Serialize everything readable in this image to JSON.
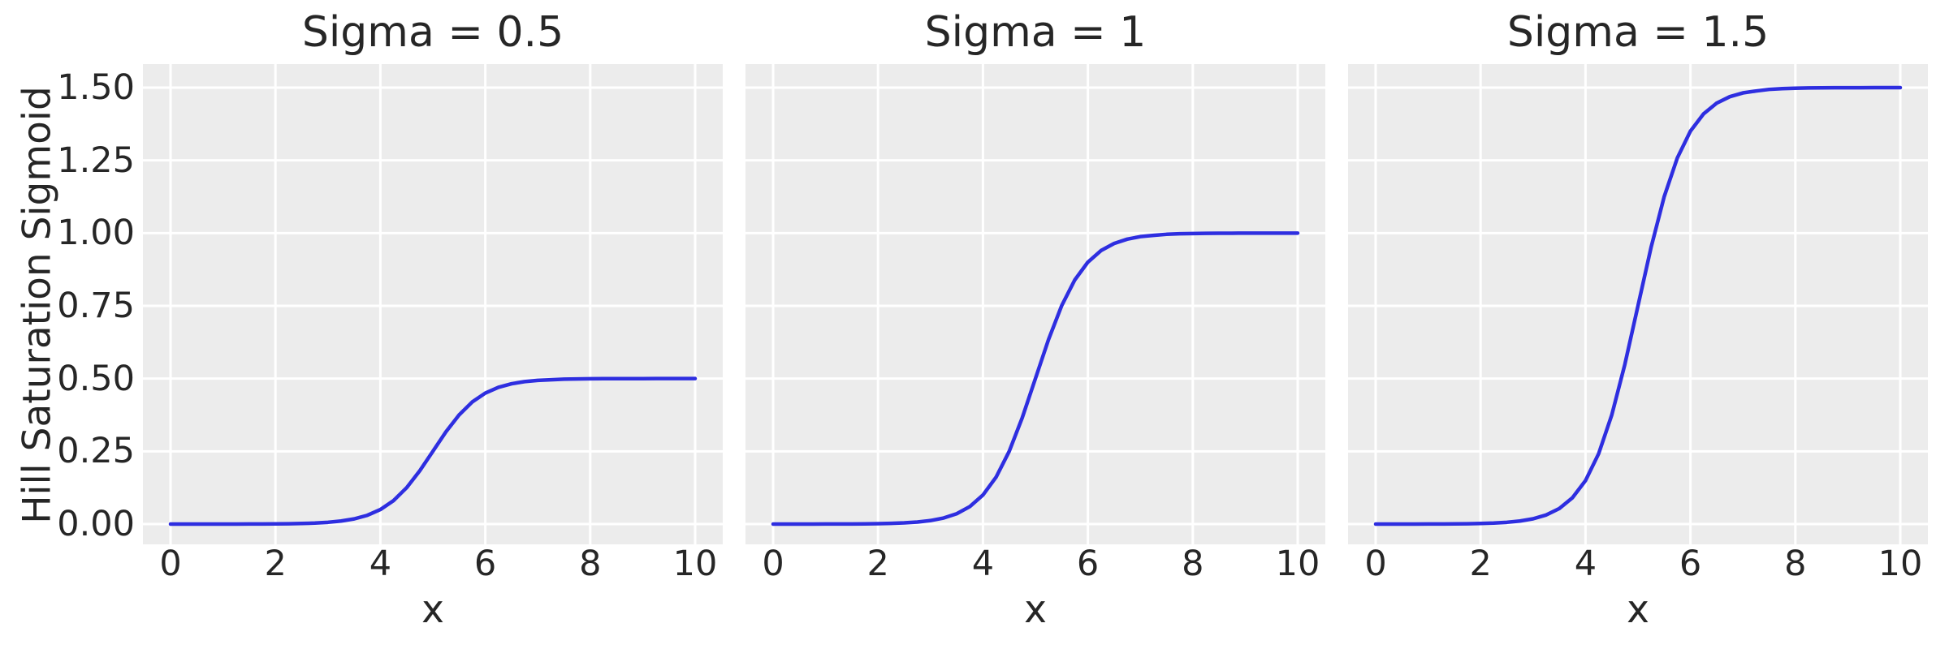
{
  "figure": {
    "background": "#ffffff",
    "panel_background": "#ececec",
    "grid_color": "#ffffff",
    "line_color": "#2e2ee0",
    "text_color": "#262626"
  },
  "chart_data": {
    "type": "line",
    "layout": "1x3 subplots, shared y axis, grid on",
    "xlabel": "x",
    "ylabel": "Hill Saturation Sigmoid",
    "xlim": [
      0,
      10
    ],
    "ylim": [
      0,
      1.5
    ],
    "x_ticks": [
      "0",
      "2",
      "4",
      "6",
      "8",
      "10"
    ],
    "x_tick_values": [
      0,
      2,
      4,
      6,
      8,
      10
    ],
    "y_ticks": [
      "0.00",
      "0.25",
      "0.50",
      "0.75",
      "1.00",
      "1.25",
      "1.50"
    ],
    "y_tick_values": [
      0,
      0.25,
      0.5,
      0.75,
      1.0,
      1.25,
      1.5
    ],
    "x": [
      0,
      0.25,
      0.5,
      0.75,
      1,
      1.25,
      1.5,
      1.75,
      2,
      2.25,
      2.5,
      2.75,
      3,
      3.25,
      3.5,
      3.75,
      4,
      4.25,
      4.5,
      4.75,
      5,
      5.25,
      5.5,
      5.75,
      6,
      6.25,
      6.5,
      6.75,
      7,
      7.25,
      7.5,
      7.75,
      8,
      8.25,
      8.5,
      8.75,
      9,
      9.25,
      9.5,
      9.75,
      10
    ],
    "subplots": [
      {
        "title": "Sigma = 0.5",
        "sigma": 0.5,
        "saturation": 0.5,
        "y": [
          0.0,
          0.0,
          0.0,
          0.0,
          0.0001,
          0.0001,
          0.0002,
          0.0004,
          0.0007,
          0.0012,
          0.002,
          0.0035,
          0.0061,
          0.0104,
          0.0178,
          0.03,
          0.0499,
          0.0805,
          0.1249,
          0.183,
          0.25,
          0.3171,
          0.3751,
          0.4195,
          0.4501,
          0.47,
          0.4822,
          0.4896,
          0.4939,
          0.4961,
          0.498,
          0.4988,
          0.4993,
          0.4996,
          0.4998,
          0.4999,
          0.4999,
          0.5,
          0.5,
          0.5,
          0.5
        ]
      },
      {
        "title": "Sigma = 1",
        "sigma": 1,
        "saturation": 1.0,
        "y": [
          0.0,
          0.0,
          0.0001,
          0.0001,
          0.0002,
          0.0003,
          0.0005,
          0.0008,
          0.0014,
          0.0024,
          0.0041,
          0.007,
          0.0121,
          0.0208,
          0.0356,
          0.0601,
          0.0998,
          0.1611,
          0.2497,
          0.3659,
          0.5,
          0.6341,
          0.7503,
          0.8389,
          0.9002,
          0.9399,
          0.9644,
          0.9792,
          0.9879,
          0.9922,
          0.9959,
          0.9977,
          0.9986,
          0.9992,
          0.9995,
          0.9997,
          0.9998,
          0.9999,
          0.9999,
          1.0,
          1.0
        ]
      },
      {
        "title": "Sigma = 1.5",
        "sigma": 1.5,
        "saturation": 1.5,
        "y": [
          0.0,
          0.0,
          0.0001,
          0.0001,
          0.0002,
          0.0004,
          0.0007,
          0.0012,
          0.002,
          0.0035,
          0.0061,
          0.0105,
          0.0182,
          0.0313,
          0.0534,
          0.0902,
          0.1496,
          0.2417,
          0.3746,
          0.5489,
          0.75,
          0.9511,
          1.1254,
          1.2583,
          1.3504,
          1.4098,
          1.4466,
          1.4688,
          1.4818,
          1.4883,
          1.4939,
          1.4966,
          1.498,
          1.4988,
          1.4993,
          1.4996,
          1.4998,
          1.4998,
          1.4999,
          1.4999,
          1.5
        ]
      }
    ]
  }
}
